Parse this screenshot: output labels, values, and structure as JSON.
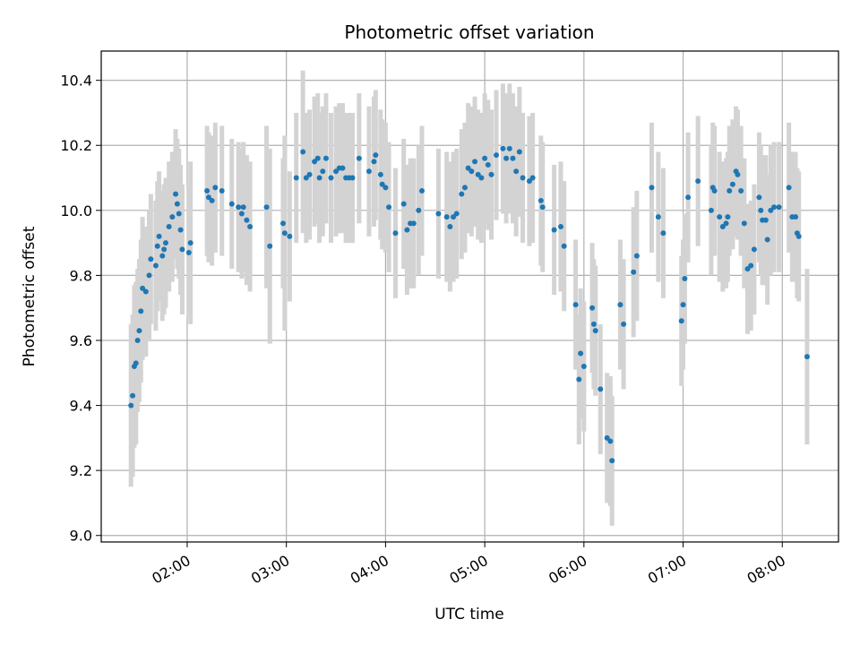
{
  "chart_data": {
    "type": "scatter",
    "title": "Photometric offset variation",
    "xlabel": "UTC time",
    "ylabel": "Photometric offset",
    "x_ticks": [
      "02:00",
      "03:00",
      "04:00",
      "05:00",
      "06:00",
      "07:00",
      "08:00"
    ],
    "y_ticks": [
      "9.0",
      "9.2",
      "9.4",
      "9.6",
      "9.8",
      "10.0",
      "10.2",
      "10.4"
    ],
    "xlim": [
      "01:08",
      "08:34"
    ],
    "ylim": [
      8.98,
      10.49
    ],
    "grid": true,
    "colors": {
      "points": "#1f77b4",
      "error_bars": "#d3d3d3",
      "grid": "#b0b0b0"
    },
    "points": [
      [
        "01:26",
        9.4,
        0.25
      ],
      [
        "01:27",
        9.43,
        0.25
      ],
      [
        "01:28",
        9.52,
        0.25
      ],
      [
        "01:29",
        9.53,
        0.25
      ],
      [
        "01:30",
        9.6,
        0.22
      ],
      [
        "01:31",
        9.63,
        0.22
      ],
      [
        "01:32",
        9.69,
        0.22
      ],
      [
        "01:33",
        9.76,
        0.22
      ],
      [
        "01:35",
        9.75,
        0.2
      ],
      [
        "01:37",
        9.8,
        0.2
      ],
      [
        "01:38",
        9.85,
        0.2
      ],
      [
        "01:41",
        9.83,
        0.2
      ],
      [
        "01:42",
        9.89,
        0.2
      ],
      [
        "01:43",
        9.92,
        0.2
      ],
      [
        "01:45",
        9.86,
        0.2
      ],
      [
        "01:46",
        9.88,
        0.2
      ],
      [
        "01:47",
        9.9,
        0.2
      ],
      [
        "01:49",
        9.95,
        0.2
      ],
      [
        "01:51",
        9.98,
        0.2
      ],
      [
        "01:53",
        10.05,
        0.2
      ],
      [
        "01:54",
        10.02,
        0.2
      ],
      [
        "01:55",
        9.99,
        0.2
      ],
      [
        "01:56",
        9.94,
        0.2
      ],
      [
        "01:57",
        9.88,
        0.2
      ],
      [
        "02:01",
        9.87,
        0.2
      ],
      [
        "02:02",
        9.9,
        0.25
      ],
      [
        "02:12",
        10.06,
        0.2
      ],
      [
        "02:13",
        10.04,
        0.2
      ],
      [
        "02:15",
        10.03,
        0.2
      ],
      [
        "02:17",
        10.07,
        0.2
      ],
      [
        "02:21",
        10.06,
        0.2
      ],
      [
        "02:27",
        10.02,
        0.2
      ],
      [
        "02:31",
        10.01,
        0.2
      ],
      [
        "02:33",
        9.99,
        0.2
      ],
      [
        "02:34",
        10.01,
        0.2
      ],
      [
        "02:36",
        9.97,
        0.2
      ],
      [
        "02:38",
        9.95,
        0.2
      ],
      [
        "02:48",
        10.01,
        0.25
      ],
      [
        "02:50",
        9.89,
        0.3
      ],
      [
        "02:58",
        9.96,
        0.2
      ],
      [
        "02:59",
        9.93,
        0.3
      ],
      [
        "03:02",
        9.92,
        0.2
      ],
      [
        "03:06",
        10.1,
        0.2
      ],
      [
        "03:10",
        10.18,
        0.25
      ],
      [
        "03:12",
        10.1,
        0.2
      ],
      [
        "03:14",
        10.11,
        0.2
      ],
      [
        "03:17",
        10.15,
        0.2
      ],
      [
        "03:19",
        10.16,
        0.2
      ],
      [
        "03:20",
        10.1,
        0.2
      ],
      [
        "03:22",
        10.12,
        0.2
      ],
      [
        "03:24",
        10.16,
        0.2
      ],
      [
        "03:27",
        10.1,
        0.2
      ],
      [
        "03:30",
        10.12,
        0.2
      ],
      [
        "03:32",
        10.13,
        0.2
      ],
      [
        "03:34",
        10.13,
        0.2
      ],
      [
        "03:36",
        10.1,
        0.2
      ],
      [
        "03:38",
        10.1,
        0.2
      ],
      [
        "03:40",
        10.1,
        0.2
      ],
      [
        "03:44",
        10.16,
        0.2
      ],
      [
        "03:50",
        10.12,
        0.2
      ],
      [
        "03:53",
        10.15,
        0.2
      ],
      [
        "03:54",
        10.17,
        0.2
      ],
      [
        "03:57",
        10.11,
        0.2
      ],
      [
        "03:58",
        10.08,
        0.2
      ],
      [
        "04:00",
        10.07,
        0.2
      ],
      [
        "04:02",
        10.01,
        0.2
      ],
      [
        "04:06",
        9.93,
        0.2
      ],
      [
        "04:11",
        10.02,
        0.2
      ],
      [
        "04:13",
        9.94,
        0.2
      ],
      [
        "04:15",
        9.96,
        0.2
      ],
      [
        "04:17",
        9.96,
        0.2
      ],
      [
        "04:20",
        10.0,
        0.2
      ],
      [
        "04:22",
        10.06,
        0.2
      ],
      [
        "04:32",
        9.99,
        0.2
      ],
      [
        "04:37",
        9.98,
        0.2
      ],
      [
        "04:39",
        9.95,
        0.2
      ],
      [
        "04:41",
        9.98,
        0.2
      ],
      [
        "04:43",
        9.99,
        0.2
      ],
      [
        "04:46",
        10.05,
        0.2
      ],
      [
        "04:48",
        10.07,
        0.2
      ],
      [
        "04:50",
        10.13,
        0.2
      ],
      [
        "04:52",
        10.12,
        0.2
      ],
      [
        "04:54",
        10.15,
        0.2
      ],
      [
        "04:56",
        10.11,
        0.2
      ],
      [
        "04:58",
        10.1,
        0.2
      ],
      [
        "05:00",
        10.16,
        0.2
      ],
      [
        "05:02",
        10.14,
        0.2
      ],
      [
        "05:04",
        10.11,
        0.2
      ],
      [
        "05:07",
        10.17,
        0.2
      ],
      [
        "05:11",
        10.19,
        0.2
      ],
      [
        "05:13",
        10.16,
        0.2
      ],
      [
        "05:15",
        10.19,
        0.2
      ],
      [
        "05:17",
        10.16,
        0.2
      ],
      [
        "05:19",
        10.12,
        0.2
      ],
      [
        "05:21",
        10.18,
        0.2
      ],
      [
        "05:23",
        10.1,
        0.2
      ],
      [
        "05:27",
        10.09,
        0.2
      ],
      [
        "05:29",
        10.1,
        0.2
      ],
      [
        "05:34",
        10.03,
        0.2
      ],
      [
        "05:35",
        10.01,
        0.2
      ],
      [
        "05:42",
        9.94,
        0.2
      ],
      [
        "05:46",
        9.95,
        0.2
      ],
      [
        "05:48",
        9.89,
        0.2
      ],
      [
        "05:55",
        9.71,
        0.2
      ],
      [
        "05:57",
        9.48,
        0.2
      ],
      [
        "05:58",
        9.56,
        0.2
      ],
      [
        "06:00",
        9.52,
        0.2
      ],
      [
        "06:05",
        9.7,
        0.2
      ],
      [
        "06:06",
        9.65,
        0.2
      ],
      [
        "06:07",
        9.63,
        0.2
      ],
      [
        "06:10",
        9.45,
        0.2
      ],
      [
        "06:14",
        9.3,
        0.2
      ],
      [
        "06:16",
        9.29,
        0.2
      ],
      [
        "06:17",
        9.23,
        0.2
      ],
      [
        "06:22",
        9.71,
        0.2
      ],
      [
        "06:24",
        9.65,
        0.2
      ],
      [
        "06:30",
        9.81,
        0.2
      ],
      [
        "06:32",
        9.86,
        0.2
      ],
      [
        "06:41",
        10.07,
        0.2
      ],
      [
        "06:45",
        9.98,
        0.2
      ],
      [
        "06:48",
        9.93,
        0.2
      ],
      [
        "06:59",
        9.66,
        0.2
      ],
      [
        "07:00",
        9.71,
        0.2
      ],
      [
        "07:01",
        9.79,
        0.2
      ],
      [
        "07:03",
        10.04,
        0.2
      ],
      [
        "07:09",
        10.09,
        0.2
      ],
      [
        "07:17",
        10.0,
        0.2
      ],
      [
        "07:18",
        10.07,
        0.2
      ],
      [
        "07:19",
        10.06,
        0.2
      ],
      [
        "07:22",
        9.98,
        0.2
      ],
      [
        "07:24",
        9.95,
        0.2
      ],
      [
        "07:26",
        9.96,
        0.2
      ],
      [
        "07:27",
        9.98,
        0.2
      ],
      [
        "07:28",
        10.06,
        0.2
      ],
      [
        "07:30",
        10.08,
        0.2
      ],
      [
        "07:32",
        10.12,
        0.2
      ],
      [
        "07:33",
        10.11,
        0.2
      ],
      [
        "07:35",
        10.06,
        0.2
      ],
      [
        "07:37",
        9.96,
        0.2
      ],
      [
        "07:39",
        9.82,
        0.2
      ],
      [
        "07:41",
        9.83,
        0.2
      ],
      [
        "07:43",
        9.88,
        0.2
      ],
      [
        "07:46",
        10.04,
        0.2
      ],
      [
        "07:47",
        10.0,
        0.2
      ],
      [
        "07:48",
        9.97,
        0.2
      ],
      [
        "07:50",
        9.97,
        0.2
      ],
      [
        "07:51",
        9.91,
        0.2
      ],
      [
        "07:53",
        10.0,
        0.2
      ],
      [
        "07:55",
        10.01,
        0.2
      ],
      [
        "07:58",
        10.01,
        0.2
      ],
      [
        "08:04",
        10.07,
        0.2
      ],
      [
        "08:06",
        9.98,
        0.2
      ],
      [
        "08:08",
        9.98,
        0.2
      ],
      [
        "08:09",
        9.93,
        0.2
      ],
      [
        "08:10",
        9.92,
        0.2
      ],
      [
        "08:15",
        9.55,
        0.27
      ]
    ]
  }
}
